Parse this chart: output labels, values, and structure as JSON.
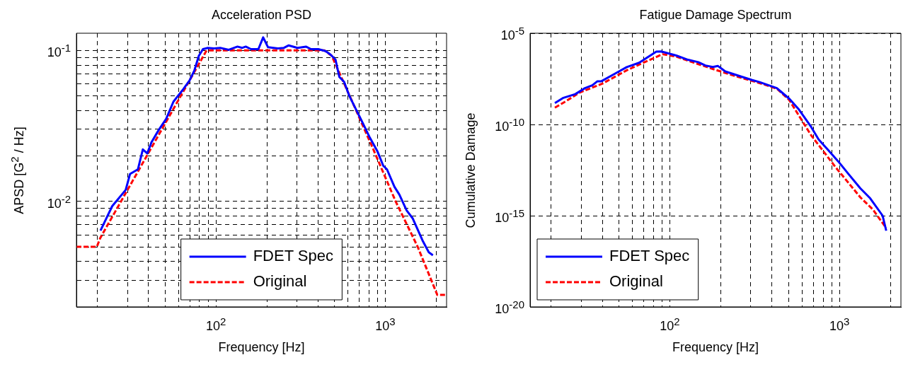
{
  "chart_data": [
    {
      "type": "line",
      "title": "Acceleration PSD",
      "xlabel": "Frequency [Hz]",
      "ylabel": "APSD [G$^{2}$ / Hz]",
      "log": "xy",
      "grid": true,
      "legend": "bottom",
      "xlim": [
        15,
        2300
      ],
      "ylim": [
        0.002,
        0.13
      ],
      "xticks": [
        {
          "value": 20,
          "label": null
        },
        {
          "value": 30,
          "label": null
        },
        {
          "value": 40,
          "label": null
        },
        {
          "value": 50,
          "label": null
        },
        {
          "value": 60,
          "label": null
        },
        {
          "value": 70,
          "label": null
        },
        {
          "value": 80,
          "label": null
        },
        {
          "value": 90,
          "label": null
        },
        {
          "value": 100,
          "label": "10$^{2}$"
        },
        {
          "value": 200,
          "label": null
        },
        {
          "value": 300,
          "label": null
        },
        {
          "value": 400,
          "label": null
        },
        {
          "value": 500,
          "label": null
        },
        {
          "value": 600,
          "label": null
        },
        {
          "value": 700,
          "label": null
        },
        {
          "value": 800,
          "label": null
        },
        {
          "value": 900,
          "label": null
        },
        {
          "value": 1000,
          "label": "10$^{3}$"
        },
        {
          "value": 2000,
          "label": null
        }
      ],
      "yticks": [
        {
          "value": 0.002,
          "label": null
        },
        {
          "value": 0.003,
          "label": null
        },
        {
          "value": 0.004,
          "label": null
        },
        {
          "value": 0.005,
          "label": null
        },
        {
          "value": 0.006,
          "label": null
        },
        {
          "value": 0.007,
          "label": null
        },
        {
          "value": 0.008,
          "label": null
        },
        {
          "value": 0.009,
          "label": null
        },
        {
          "value": 0.01,
          "label": "10$^{-2}$"
        },
        {
          "value": 0.02,
          "label": null
        },
        {
          "value": 0.03,
          "label": null
        },
        {
          "value": 0.04,
          "label": null
        },
        {
          "value": 0.05,
          "label": null
        },
        {
          "value": 0.06,
          "label": null
        },
        {
          "value": 0.07,
          "label": null
        },
        {
          "value": 0.08,
          "label": null
        },
        {
          "value": 0.09,
          "label": null
        },
        {
          "value": 0.1,
          "label": "10$^{-1}$"
        }
      ],
      "series": [
        {
          "name": "FDET Spec",
          "color": "#0000ff",
          "line_style": "solid",
          "x": [
            20.8,
            24.4,
            29.3,
            31.1,
            34.6,
            37,
            39.3,
            41.6,
            45.9,
            50.8,
            56.1,
            64.1,
            69.7,
            74.5,
            79.2,
            83.8,
            89.5,
            97.3,
            106,
            119,
            134,
            143,
            150,
            161,
            178,
            190,
            203,
            232,
            252,
            269,
            303,
            340,
            364,
            402,
            444,
            475,
            508,
            535,
            571,
            611,
            675,
            745,
            811,
            896,
            973,
            1023,
            1132,
            1210,
            1337,
            1453,
            1660,
            1806,
            1910
          ],
          "values": [
            0.0064,
            0.0093,
            0.0119,
            0.0152,
            0.0163,
            0.0221,
            0.0208,
            0.0246,
            0.0297,
            0.0352,
            0.0458,
            0.0553,
            0.063,
            0.0734,
            0.092,
            0.102,
            0.104,
            0.103,
            0.104,
            0.101,
            0.106,
            0.104,
            0.106,
            0.102,
            0.102,
            0.122,
            0.105,
            0.103,
            0.104,
            0.108,
            0.104,
            0.106,
            0.102,
            0.102,
            0.099,
            0.0938,
            0.087,
            0.0668,
            0.0619,
            0.0504,
            0.0402,
            0.0321,
            0.0264,
            0.0216,
            0.0172,
            0.0163,
            0.0125,
            0.0111,
            0.0087,
            0.0077,
            0.0055,
            0.0046,
            0.0044
          ]
        },
        {
          "name": "Original",
          "color": "#ff0000",
          "line_style": "dashed",
          "x": [
            15,
            19.8,
            20.7,
            88,
            437,
            483,
            652,
            851,
            1151,
            1553,
            2028,
            2300
          ],
          "values": [
            0.005,
            0.005,
            0.0057,
            0.1,
            0.1,
            0.092,
            0.0433,
            0.022,
            0.01,
            0.005,
            0.0024,
            0.0024
          ]
        }
      ]
    },
    {
      "type": "line",
      "title": "Fatigue Damage Spectrum",
      "xlabel": "Frequency [Hz]",
      "ylabel": "Cumulative Damage",
      "log": "xy",
      "grid": true,
      "legend": "bottom left",
      "xlim": [
        15,
        2300
      ],
      "ylim": [
        1e-20,
        1e-05
      ],
      "xticks": [
        {
          "value": 20,
          "label": null
        },
        {
          "value": 30,
          "label": null
        },
        {
          "value": 40,
          "label": null
        },
        {
          "value": 50,
          "label": null
        },
        {
          "value": 60,
          "label": null
        },
        {
          "value": 70,
          "label": null
        },
        {
          "value": 80,
          "label": null
        },
        {
          "value": 90,
          "label": null
        },
        {
          "value": 100,
          "label": "10$^{2}$"
        },
        {
          "value": 200,
          "label": null
        },
        {
          "value": 300,
          "label": null
        },
        {
          "value": 400,
          "label": null
        },
        {
          "value": 500,
          "label": null
        },
        {
          "value": 600,
          "label": null
        },
        {
          "value": 700,
          "label": null
        },
        {
          "value": 800,
          "label": null
        },
        {
          "value": 900,
          "label": null
        },
        {
          "value": 1000,
          "label": "10$^{3}$"
        },
        {
          "value": 2000,
          "label": null
        }
      ],
      "yticks": [
        {
          "value": 1e-20,
          "label": "10$^{-20}$"
        },
        {
          "value": 1e-15,
          "label": "10$^{-15}$"
        },
        {
          "value": 1e-10,
          "label": "10$^{-10}$"
        },
        {
          "value": 1e-05,
          "label": "10$^{-5}$"
        }
      ],
      "series": [
        {
          "name": "FDET Spec",
          "color": "#0000ff",
          "line_style": "solid",
          "x": [
            21,
            23.4,
            27.7,
            31.6,
            34.9,
            37.3,
            39.3,
            47.2,
            55.7,
            65.9,
            83.2,
            88.9,
            109,
            128,
            147,
            162,
            179,
            192,
            212,
            259,
            306,
            338,
            427,
            456,
            505,
            577,
            681,
            753,
            861,
            984,
            1125,
            1328,
            1517,
            1794,
            1884
          ],
          "values": [
            1.5e-09,
            2.8e-09,
            4.6e-09,
            9.8e-09,
            1.4e-08,
            2.3e-08,
            2.3e-08,
            5.9e-08,
            1.4e-07,
            2.4e-07,
            9.8e-07,
            1e-06,
            6e-07,
            3.5e-07,
            2.6e-07,
            1.7e-07,
            1.4e-07,
            1.6e-07,
            8.1e-08,
            4.4e-08,
            2.7e-08,
            2.1e-08,
            9.8e-09,
            5.8e-09,
            2.6e-09,
            6.5e-10,
            7.2e-11,
            1.5e-11,
            3.8e-12,
            9.3e-13,
            2e-13,
            3.1e-14,
            8.9e-15,
            1e-15,
            1.5e-16
          ]
        },
        {
          "name": "Original",
          "color": "#ff0000",
          "line_style": "dashed",
          "x": [
            21,
            24.2,
            29.6,
            39.9,
            55.7,
            68.1,
            90.5,
            109,
            179,
            251,
            349,
            427,
            505,
            681,
            950,
            1328,
            1570,
            1884
          ],
          "values": [
            8.3e-10,
            1.8e-09,
            5.8e-09,
            1.7e-08,
            9.3e-08,
            2.2e-07,
            7.1e-07,
            5.2e-07,
            1.1e-07,
            4.1e-08,
            1.7e-08,
            9.1e-09,
            2.2e-09,
            2.5e-11,
            4.4e-13,
            1e-14,
            2.2e-15,
            2.1e-16
          ]
        }
      ]
    }
  ]
}
